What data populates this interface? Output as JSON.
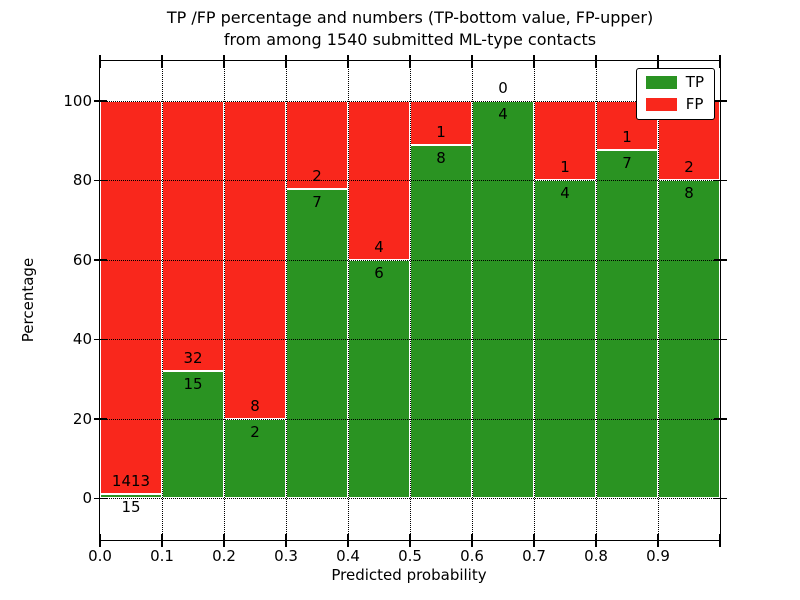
{
  "title": {
    "line1": "TP /FP percentage and numbers (TP-bottom value, FP-upper)",
    "line2": "from among 1540 submitted ML-type contacts"
  },
  "axes": {
    "xlabel": "Predicted probability",
    "ylabel": "Percentage",
    "yticks": [
      "0",
      "20",
      "40",
      "60",
      "80",
      "100"
    ],
    "ytick_values": [
      0,
      20,
      40,
      60,
      80,
      100
    ],
    "xticks": [
      "0.0",
      "0.1",
      "0.2",
      "0.3",
      "0.4",
      "0.5",
      "0.6",
      "0.7",
      "0.8",
      "0.9"
    ],
    "xtick_values": [
      0.0,
      0.1,
      0.2,
      0.3,
      0.4,
      0.5,
      0.6,
      0.7,
      0.8,
      0.9
    ]
  },
  "legend": {
    "entries": [
      {
        "label": "TP",
        "color": "#2a9322"
      },
      {
        "label": "FP",
        "color": "#f9271c"
      }
    ]
  },
  "colors": {
    "tp": "#2a9322",
    "fp": "#f9271c",
    "grid": "#000000",
    "bar_edge": "#ffffff"
  },
  "chart_data": {
    "type": "bar",
    "stacked": true,
    "percent_normalized": true,
    "title": "TP /FP percentage and numbers (TP-bottom value, FP-upper) from among 1540 submitted ML-type contacts",
    "xlabel": "Predicted probability",
    "ylabel": "Percentage",
    "xlim": [
      0,
      1
    ],
    "ylim": [
      -10.5,
      110
    ],
    "grid": true,
    "legend_position": "upper right",
    "bin_width": 0.1,
    "bin_starts": [
      0.0,
      0.1,
      0.2,
      0.3,
      0.4,
      0.5,
      0.6,
      0.7,
      0.8,
      0.9
    ],
    "series": [
      {
        "name": "TP",
        "color": "#2a9322",
        "counts": [
          15,
          15,
          2,
          7,
          6,
          8,
          4,
          4,
          7,
          8
        ]
      },
      {
        "name": "FP",
        "color": "#f9271c",
        "counts": [
          1413,
          32,
          8,
          2,
          4,
          1,
          0,
          1,
          1,
          2
        ]
      }
    ],
    "tp_percent_approx": [
      1.05,
      31.91,
      20.0,
      77.78,
      60.0,
      88.89,
      100.0,
      80.0,
      87.5,
      80.0
    ],
    "total_contacts": 1540
  }
}
